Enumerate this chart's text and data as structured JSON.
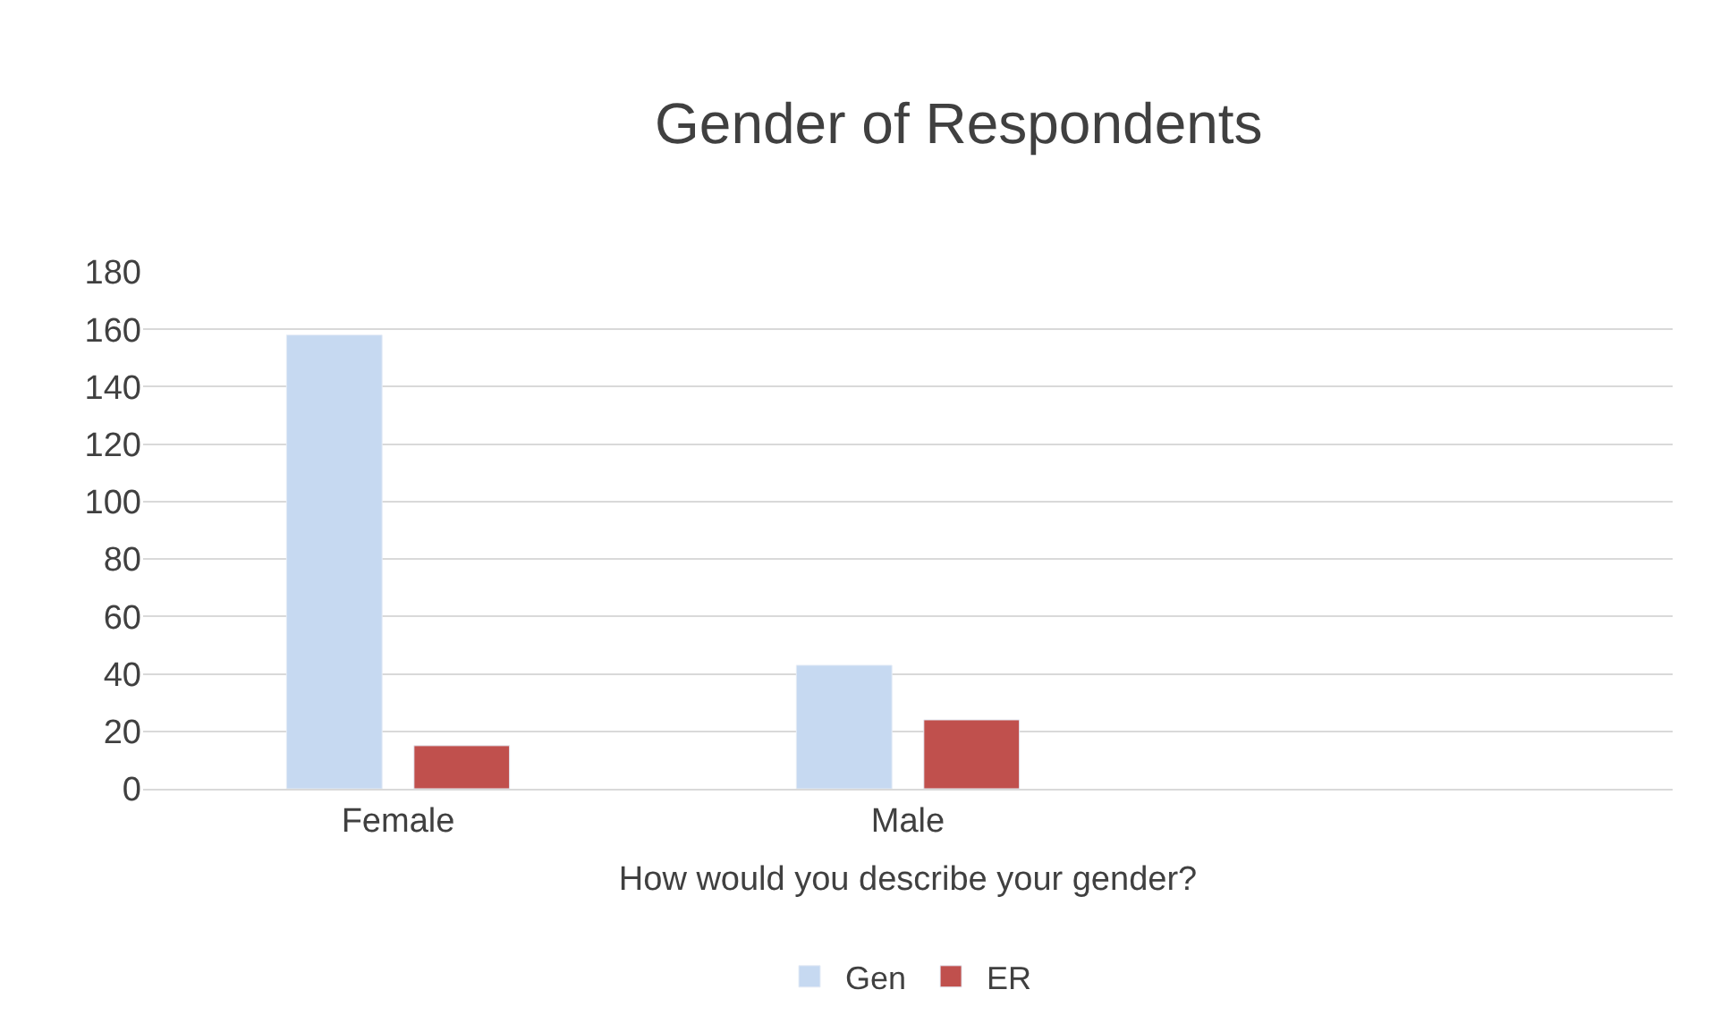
{
  "chart_data": {
    "type": "bar",
    "title": "Gender of Respondents",
    "xlabel": "How would you describe your gender?",
    "categories": [
      "Female",
      "Male",
      null
    ],
    "series": [
      {
        "name": "Gen",
        "color": "#c6d9f1",
        "values": [
          158,
          43,
          null
        ]
      },
      {
        "name": "ER",
        "color": "#c0504d",
        "values": [
          15,
          24,
          null
        ]
      }
    ],
    "ylim": [
      0,
      180
    ],
    "yticks": [
      0,
      20,
      40,
      60,
      80,
      100,
      120,
      140,
      160,
      180
    ],
    "grid": "y",
    "legend": "bottom"
  }
}
